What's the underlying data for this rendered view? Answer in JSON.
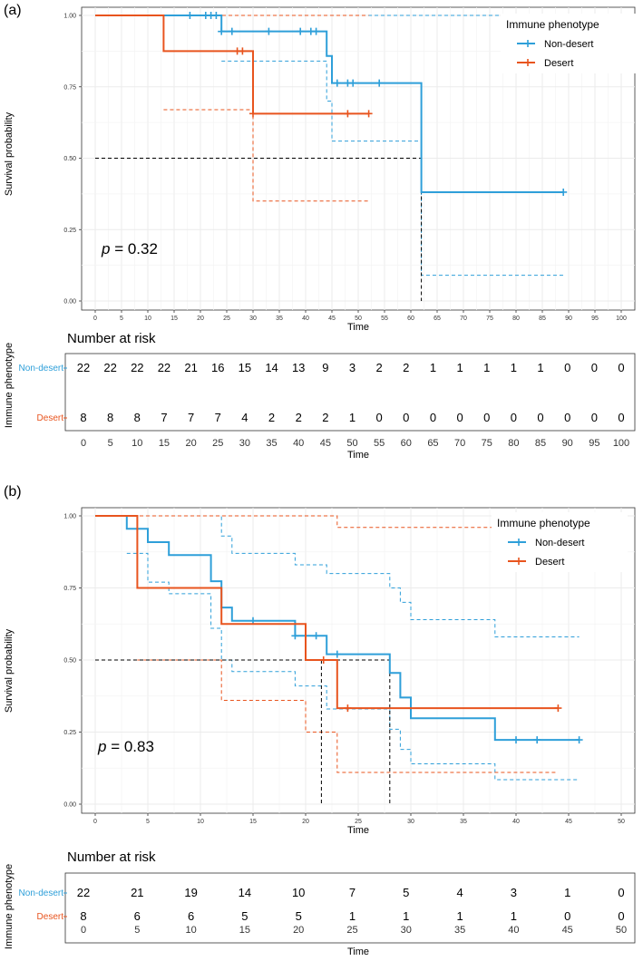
{
  "colors": {
    "non_desert": "#2E9FD9",
    "desert": "#E8541E",
    "median": "#000000",
    "grid": "#EBEBEB"
  },
  "chart_data": [
    {
      "panel": "(a)",
      "type": "line",
      "subtype": "kaplan-meier",
      "xlabel": "Time",
      "ylabel": "Survival probability",
      "xlim": [
        0,
        100
      ],
      "ylim": [
        0,
        1
      ],
      "xticks": [
        0,
        5,
        10,
        15,
        20,
        25,
        30,
        35,
        40,
        45,
        50,
        55,
        60,
        65,
        70,
        75,
        80,
        85,
        90,
        95,
        100
      ],
      "yticks": [
        "0.00",
        "0.25",
        "0.50",
        "0.75",
        "1.00"
      ],
      "p_label": "p",
      "p_value": "= 0.32",
      "legend": {
        "title": "Immune phenotype",
        "items": [
          "Non-desert",
          "Desert"
        ]
      },
      "series": [
        {
          "name": "Non-desert",
          "key": "non_desert",
          "steps": [
            [
              0,
              1
            ],
            [
              24,
              0.944
            ],
            [
              44,
              0.858
            ],
            [
              45,
              0.763
            ],
            [
              62,
              0.381
            ],
            [
              89,
              0.381
            ]
          ],
          "censored": [
            [
              18,
              1
            ],
            [
              21,
              1
            ],
            [
              22,
              1
            ],
            [
              23,
              1
            ],
            [
              24,
              0.944
            ],
            [
              26,
              0.944
            ],
            [
              33,
              0.944
            ],
            [
              39,
              0.944
            ],
            [
              41,
              0.944
            ],
            [
              42,
              0.944
            ],
            [
              46,
              0.763
            ],
            [
              48,
              0.763
            ],
            [
              49,
              0.763
            ],
            [
              54,
              0.763
            ],
            [
              89,
              0.381
            ]
          ],
          "ci_upper": [
            [
              0,
              1
            ],
            [
              81,
              1
            ]
          ],
          "ci_lower": [
            [
              24,
              0.84
            ],
            [
              44,
              0.7
            ],
            [
              45,
              0.56
            ],
            [
              62,
              0.09
            ],
            [
              89,
              0.09
            ]
          ]
        },
        {
          "name": "Desert",
          "key": "desert",
          "steps": [
            [
              0,
              1
            ],
            [
              13,
              0.875
            ],
            [
              30,
              0.656
            ],
            [
              52,
              0.656
            ]
          ],
          "censored": [
            [
              27,
              0.875
            ],
            [
              28,
              0.875
            ],
            [
              30,
              0.656
            ],
            [
              48,
              0.656
            ],
            [
              52,
              0.656
            ]
          ],
          "ci_upper": [
            [
              0,
              1
            ],
            [
              52,
              1
            ]
          ],
          "ci_lower": [
            [
              13,
              0.67
            ],
            [
              30,
              0.35
            ],
            [
              52,
              0.35
            ]
          ]
        }
      ],
      "median_lines": {
        "y": 0.5,
        "x_start": 0,
        "x_end": 62,
        "verticals": [
          62
        ]
      },
      "risk_table": {
        "title": "Number at risk",
        "ylabel": "Immune phenotype",
        "xlabel": "Time",
        "times": [
          0,
          5,
          10,
          15,
          20,
          25,
          30,
          35,
          40,
          45,
          50,
          55,
          60,
          65,
          70,
          75,
          80,
          85,
          90,
          95,
          100
        ],
        "rows": [
          {
            "name": "Non-desert",
            "key": "non_desert",
            "values": [
              22,
              22,
              22,
              22,
              21,
              16,
              15,
              14,
              13,
              9,
              3,
              2,
              2,
              1,
              1,
              1,
              1,
              1,
              0,
              0,
              0
            ]
          },
          {
            "name": "Desert",
            "key": "desert",
            "values": [
              8,
              8,
              8,
              7,
              7,
              7,
              4,
              2,
              2,
              2,
              1,
              0,
              0,
              0,
              0,
              0,
              0,
              0,
              0,
              0,
              0
            ]
          }
        ]
      }
    },
    {
      "panel": "(b)",
      "type": "line",
      "subtype": "kaplan-meier",
      "xlabel": "Time",
      "ylabel": "Survival probability",
      "xlim": [
        0,
        50
      ],
      "ylim": [
        0,
        1
      ],
      "xticks": [
        0,
        5,
        10,
        15,
        20,
        25,
        30,
        35,
        40,
        45,
        50
      ],
      "yticks": [
        "0.00",
        "0.25",
        "0.50",
        "0.75",
        "1.00"
      ],
      "p_label": "p",
      "p_value": "= 0.83",
      "legend": {
        "title": "Immune phenotype",
        "items": [
          "Non-desert",
          "Desert"
        ]
      },
      "series": [
        {
          "name": "Non-desert",
          "key": "non_desert",
          "steps": [
            [
              0,
              1
            ],
            [
              3,
              0.955
            ],
            [
              5,
              0.909
            ],
            [
              7,
              0.864
            ],
            [
              11,
              0.773
            ],
            [
              12,
              0.682
            ],
            [
              13,
              0.636
            ],
            [
              19,
              0.584
            ],
            [
              22,
              0.52
            ],
            [
              28,
              0.455
            ],
            [
              29,
              0.37
            ],
            [
              30,
              0.298
            ],
            [
              38,
              0.223
            ],
            [
              46,
              0.223
            ]
          ],
          "censored": [
            [
              15,
              0.636
            ],
            [
              19,
              0.584
            ],
            [
              21,
              0.584
            ],
            [
              23,
              0.52
            ],
            [
              40,
              0.223
            ],
            [
              42,
              0.223
            ],
            [
              46,
              0.223
            ]
          ],
          "ci_upper": [
            [
              0,
              1
            ],
            [
              11,
              1
            ],
            [
              12,
              0.93
            ],
            [
              13,
              0.87
            ],
            [
              19,
              0.83
            ],
            [
              22,
              0.8
            ],
            [
              28,
              0.75
            ],
            [
              29,
              0.7
            ],
            [
              30,
              0.64
            ],
            [
              38,
              0.58
            ],
            [
              46,
              0.58
            ]
          ],
          "ci_lower": [
            [
              3,
              0.87
            ],
            [
              5,
              0.77
            ],
            [
              7,
              0.73
            ],
            [
              11,
              0.61
            ],
            [
              12,
              0.5
            ],
            [
              13,
              0.46
            ],
            [
              19,
              0.41
            ],
            [
              22,
              0.33
            ],
            [
              28,
              0.26
            ],
            [
              29,
              0.19
            ],
            [
              30,
              0.14
            ],
            [
              38,
              0.085
            ],
            [
              46,
              0.085
            ]
          ]
        },
        {
          "name": "Desert",
          "key": "desert",
          "steps": [
            [
              0,
              1
            ],
            [
              4,
              0.75
            ],
            [
              12,
              0.625
            ],
            [
              20,
              0.5
            ],
            [
              23,
              0.333
            ],
            [
              44,
              0.333
            ]
          ],
          "censored": [
            [
              21.7,
              0.5
            ],
            [
              24,
              0.333
            ],
            [
              44,
              0.333
            ]
          ],
          "ci_upper": [
            [
              0,
              1
            ],
            [
              23,
              0.96
            ],
            [
              44,
              0.96
            ]
          ],
          "ci_lower": [
            [
              4,
              0.5
            ],
            [
              12,
              0.36
            ],
            [
              20,
              0.25
            ],
            [
              23,
              0.11
            ],
            [
              44,
              0.11
            ]
          ]
        }
      ],
      "median_lines": {
        "y": 0.5,
        "x_start": 0,
        "x_end": 28,
        "verticals": [
          21.5,
          28
        ]
      },
      "risk_table": {
        "title": "Number at risk",
        "ylabel": "Immune phenotype",
        "xlabel": "Time",
        "times": [
          0,
          5,
          10,
          15,
          20,
          25,
          30,
          35,
          40,
          45,
          50
        ],
        "rows": [
          {
            "name": "Non-desert",
            "key": "non_desert",
            "values": [
              22,
              21,
              19,
              14,
              10,
              7,
              5,
              4,
              3,
              1,
              0
            ]
          },
          {
            "name": "Desert",
            "key": "desert",
            "values": [
              8,
              6,
              6,
              5,
              5,
              1,
              1,
              1,
              1,
              0,
              0
            ]
          }
        ]
      }
    }
  ]
}
